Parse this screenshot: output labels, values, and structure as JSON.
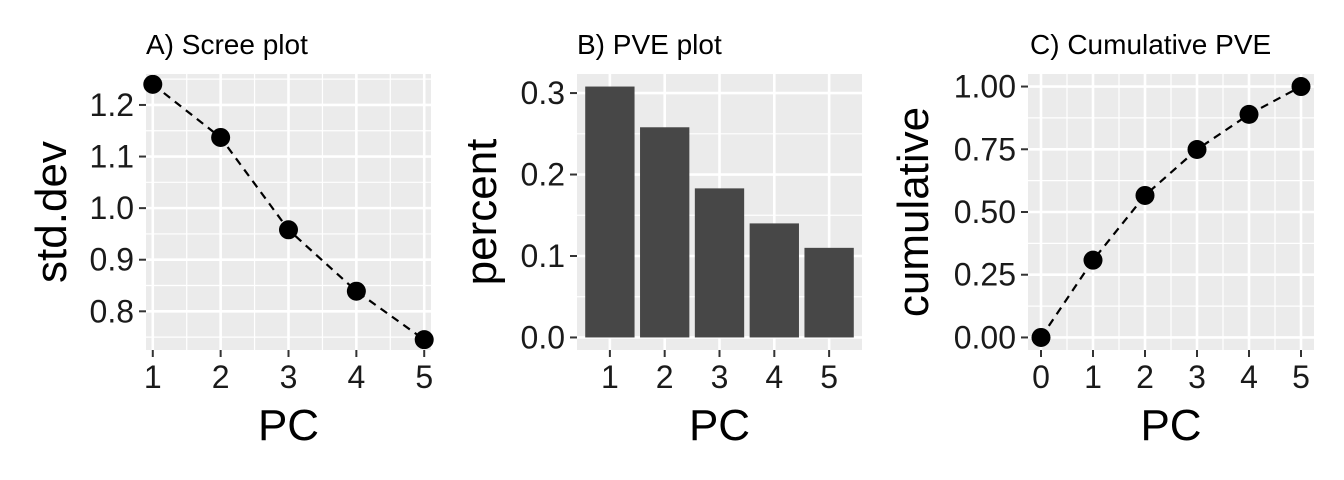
{
  "colors": {
    "panel_background": "#EBEBEB",
    "grid": "#FFFFFF",
    "point": "#000000",
    "line": "#000000",
    "bar": "#474747"
  },
  "chart_data": [
    {
      "type": "line",
      "title": "A) Scree plot",
      "xlabel": "PC",
      "ylabel": "std.dev",
      "x": [
        1,
        2,
        3,
        4,
        5
      ],
      "values": [
        1.24,
        1.137,
        0.958,
        0.839,
        0.745
      ],
      "xlim": [
        0.9,
        5.1
      ],
      "ylim": [
        0.725,
        1.26
      ],
      "xticks": [
        "1",
        "2",
        "3",
        "4",
        "5"
      ],
      "yticks": [
        "0.8",
        "0.9",
        "1.0",
        "1.1",
        "1.2"
      ],
      "line_style": "dashed",
      "markers": true,
      "grid": true,
      "legend": "none"
    },
    {
      "type": "bar",
      "title": "B) PVE plot",
      "xlabel": "PC",
      "ylabel": "percent",
      "categories": [
        "1",
        "2",
        "3",
        "4",
        "5"
      ],
      "values": [
        0.308,
        0.258,
        0.183,
        0.14,
        0.11
      ],
      "ylim": [
        -0.0154,
        0.3234
      ],
      "yticks": [
        "0.0",
        "0.1",
        "0.2",
        "0.3"
      ],
      "grid": true,
      "legend": "none"
    },
    {
      "type": "line",
      "title": "C) Cumulative PVE",
      "xlabel": "PC",
      "ylabel": "cumulative",
      "x": [
        0,
        1,
        2,
        3,
        4,
        5
      ],
      "values": [
        0.0,
        0.308,
        0.566,
        0.749,
        0.889,
        1.0
      ],
      "xlim": [
        -0.25,
        5.25
      ],
      "ylim": [
        -0.05,
        1.05
      ],
      "xticks": [
        "0",
        "1",
        "2",
        "3",
        "4",
        "5"
      ],
      "yticks": [
        "0.00",
        "0.25",
        "0.50",
        "0.75",
        "1.00"
      ],
      "line_style": "dashed",
      "markers": true,
      "grid": true,
      "legend": "none"
    }
  ]
}
